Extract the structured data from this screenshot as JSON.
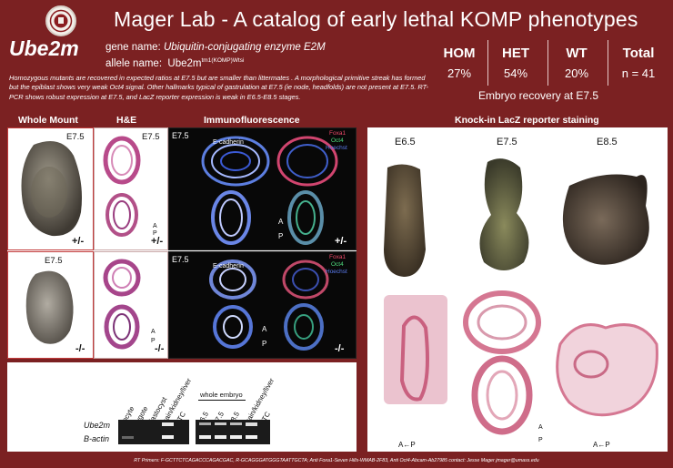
{
  "header": {
    "title": "Mager Lab - A catalog of early lethal KOMP phenotypes",
    "seal_icon": "university-seal-icon"
  },
  "gene": {
    "symbol": "Ube2m",
    "name_label": "gene name:",
    "name_value": "Ubiquitin-conjugating enzyme E2M",
    "allele_label": "allele name:",
    "allele_base": "Ube2m",
    "allele_sup": "tm1(KOMP)Wtsi"
  },
  "description": "Homozygous mutants are recovered in expected ratios at E7.5 but are smaller than littermates . A morphological primitive streak has formed but the epiblast shows very weak Oct4 signal. Other hallmarks typical of gastrulation at E7.5 (ie node, headfolds) are not present at E7.5. RT-PCR shows robust expression at E7.5, and LacZ reporter expression is weak in E6.5-E8.5 stages.",
  "recovery": {
    "stats": [
      {
        "label": "HOM",
        "value": "27%"
      },
      {
        "label": "HET",
        "value": "54%"
      },
      {
        "label": "WT",
        "value": "20%"
      },
      {
        "label": "Total",
        "value": "n = 41"
      }
    ],
    "caption": "Embryo recovery at E7.5"
  },
  "sections": {
    "whole_mount": "Whole Mount",
    "he": "H&E",
    "if": "Immunofluorescence",
    "lacz": "Knock-in LacZ reporter staining"
  },
  "panels": {
    "stage": "E7.5",
    "het": "+/-",
    "hom": "-/-",
    "ecad": "E-cadherin",
    "foxa1": "Foxa1",
    "oct4": "Oct4",
    "hoechst": "Hoechst",
    "axis_a": "A",
    "axis_p": "P"
  },
  "lacz": {
    "stages": [
      "E6.5",
      "E7.5",
      "E8.5"
    ],
    "axis_ap": "A←P",
    "axis_a": "A",
    "axis_p": "P"
  },
  "gel": {
    "lanes_left": [
      "oocyte",
      "zygote",
      "blastocyst",
      "brain/kidney/liver",
      "NTC"
    ],
    "group_label": "whole embryo",
    "lanes_right": [
      "E6.5",
      "E7.5",
      "E8.5",
      "brain/kidney/liver",
      "NTC"
    ],
    "rows": [
      "Ube2m",
      "B-actin"
    ]
  },
  "footer": "RT Primers: F-GCTTCTCAGACCCAGACGAC, R-GCAGGGATGGGTAATTGCTA; Anti Foxa1-Seven Hills-WMAB-2F83, Anti Oct4-Abcam-Ab27985 contact: Jesse Mager jmager@umass.edu",
  "colors": {
    "background": "#7b2122",
    "panel": "#ffffff",
    "if_bg": "#080808",
    "he_pink": "#c2508a",
    "lacz_pink": "#d77b93"
  }
}
